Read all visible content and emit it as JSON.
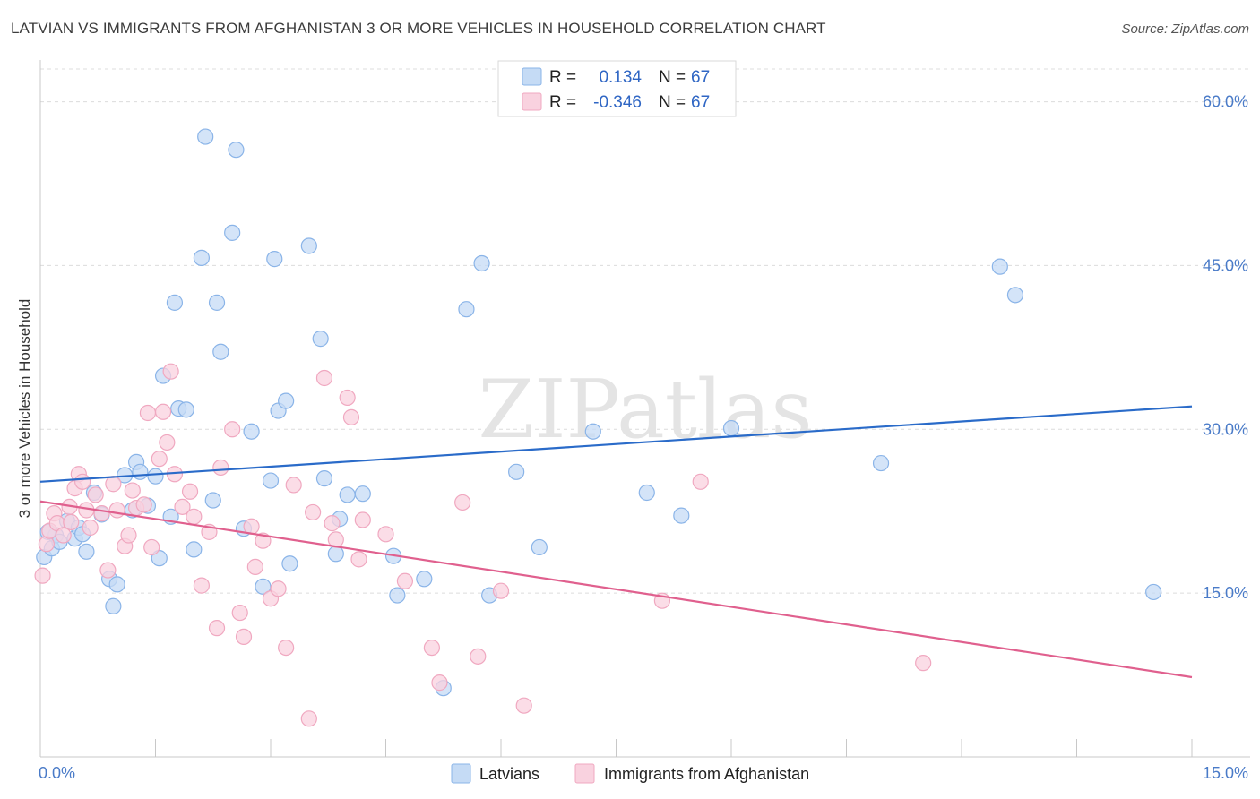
{
  "title": "LATVIAN VS IMMIGRANTS FROM AFGHANISTAN 3 OR MORE VEHICLES IN HOUSEHOLD CORRELATION CHART",
  "source": "Source: ZipAtlas.com",
  "watermark": "ZIPatlas",
  "chart_data": {
    "type": "scatter",
    "ylabel": "3 or more Vehicles in Household",
    "xlim": [
      0,
      15
    ],
    "ylim": [
      0,
      63
    ],
    "x_tick_labels": [
      "0.0%",
      "15.0%"
    ],
    "y_ticks": [
      15,
      30,
      45,
      60
    ],
    "y_tick_labels": [
      "15.0%",
      "30.0%",
      "45.0%",
      "60.0%"
    ],
    "grid": true,
    "legend_position": "top-center",
    "stats": [
      {
        "series": "Latvians",
        "r_label": "R =",
        "r_value": "0.134",
        "n_label": "N =",
        "n_value": "67"
      },
      {
        "series": "Immigrants from Afghanistan",
        "r_label": "R =",
        "r_value": "-0.346",
        "n_label": "N =",
        "n_value": "67"
      }
    ],
    "series": [
      {
        "name": "Latvians",
        "color": "#8ab4e8",
        "fill": "#c5dbf5",
        "line_color": "#2a6bc9",
        "trend": {
          "x": [
            0,
            15
          ],
          "y": [
            25.2,
            32.1
          ]
        },
        "points": [
          [
            0.05,
            18.3
          ],
          [
            0.15,
            19.1
          ],
          [
            0.2,
            20.3
          ],
          [
            0.25,
            19.7
          ],
          [
            0.35,
            21.6
          ],
          [
            0.45,
            20.0
          ],
          [
            0.5,
            21.0
          ],
          [
            0.55,
            20.4
          ],
          [
            0.6,
            18.8
          ],
          [
            0.7,
            24.2
          ],
          [
            0.8,
            22.2
          ],
          [
            0.9,
            16.3
          ],
          [
            0.95,
            13.8
          ],
          [
            1.0,
            15.8
          ],
          [
            1.1,
            25.8
          ],
          [
            1.2,
            22.6
          ],
          [
            1.25,
            27.0
          ],
          [
            1.3,
            26.1
          ],
          [
            1.4,
            23.0
          ],
          [
            1.5,
            25.7
          ],
          [
            1.55,
            18.2
          ],
          [
            1.6,
            34.9
          ],
          [
            1.7,
            22.0
          ],
          [
            1.75,
            41.6
          ],
          [
            1.8,
            31.9
          ],
          [
            1.9,
            31.8
          ],
          [
            2.0,
            19.0
          ],
          [
            2.1,
            45.7
          ],
          [
            2.15,
            56.8
          ],
          [
            2.25,
            23.5
          ],
          [
            2.3,
            41.6
          ],
          [
            2.35,
            37.1
          ],
          [
            2.5,
            48.0
          ],
          [
            2.55,
            55.6
          ],
          [
            2.65,
            20.9
          ],
          [
            2.75,
            29.8
          ],
          [
            2.9,
            15.6
          ],
          [
            3.0,
            25.3
          ],
          [
            3.05,
            45.6
          ],
          [
            3.1,
            31.7
          ],
          [
            3.2,
            32.6
          ],
          [
            3.25,
            17.7
          ],
          [
            3.5,
            46.8
          ],
          [
            3.65,
            38.3
          ],
          [
            3.7,
            25.5
          ],
          [
            3.85,
            18.6
          ],
          [
            3.9,
            21.8
          ],
          [
            4.0,
            24.0
          ],
          [
            4.2,
            24.1
          ],
          [
            4.6,
            18.4
          ],
          [
            4.65,
            14.8
          ],
          [
            5.0,
            16.3
          ],
          [
            5.25,
            6.3
          ],
          [
            5.55,
            41.0
          ],
          [
            5.75,
            45.2
          ],
          [
            5.85,
            14.8
          ],
          [
            6.2,
            26.1
          ],
          [
            6.5,
            19.2
          ],
          [
            7.2,
            29.8
          ],
          [
            7.9,
            24.2
          ],
          [
            8.35,
            22.1
          ],
          [
            9.0,
            30.1
          ],
          [
            10.95,
            26.9
          ],
          [
            12.5,
            44.9
          ],
          [
            12.7,
            42.3
          ],
          [
            14.5,
            15.1
          ],
          [
            0.1,
            20.6
          ]
        ]
      },
      {
        "name": "Immigrants from Afghanistan",
        "color": "#f0a8c0",
        "fill": "#f9d2df",
        "line_color": "#e0608e",
        "trend": {
          "x": [
            0,
            15
          ],
          "y": [
            23.4,
            7.3
          ]
        },
        "points": [
          [
            0.03,
            16.6
          ],
          [
            0.08,
            19.5
          ],
          [
            0.12,
            20.7
          ],
          [
            0.18,
            22.3
          ],
          [
            0.22,
            21.4
          ],
          [
            0.3,
            20.3
          ],
          [
            0.38,
            22.9
          ],
          [
            0.45,
            24.6
          ],
          [
            0.5,
            25.9
          ],
          [
            0.55,
            25.2
          ],
          [
            0.6,
            22.6
          ],
          [
            0.65,
            21.0
          ],
          [
            0.72,
            24.0
          ],
          [
            0.8,
            22.3
          ],
          [
            0.88,
            17.1
          ],
          [
            0.95,
            25.0
          ],
          [
            1.0,
            22.6
          ],
          [
            1.1,
            19.3
          ],
          [
            1.15,
            20.3
          ],
          [
            1.2,
            24.4
          ],
          [
            1.25,
            22.8
          ],
          [
            1.35,
            23.1
          ],
          [
            1.4,
            31.5
          ],
          [
            1.45,
            19.2
          ],
          [
            1.55,
            27.3
          ],
          [
            1.6,
            31.6
          ],
          [
            1.65,
            28.8
          ],
          [
            1.7,
            35.3
          ],
          [
            1.75,
            25.9
          ],
          [
            1.85,
            22.9
          ],
          [
            1.95,
            24.3
          ],
          [
            2.1,
            15.7
          ],
          [
            2.2,
            20.6
          ],
          [
            2.3,
            11.8
          ],
          [
            2.35,
            26.5
          ],
          [
            2.5,
            30.0
          ],
          [
            2.6,
            13.2
          ],
          [
            2.65,
            11.0
          ],
          [
            2.75,
            21.1
          ],
          [
            2.8,
            17.4
          ],
          [
            2.9,
            19.8
          ],
          [
            3.0,
            14.5
          ],
          [
            3.1,
            15.4
          ],
          [
            3.2,
            10.0
          ],
          [
            3.3,
            24.9
          ],
          [
            3.5,
            3.5
          ],
          [
            3.55,
            22.4
          ],
          [
            3.7,
            34.7
          ],
          [
            3.8,
            21.4
          ],
          [
            3.85,
            19.9
          ],
          [
            4.0,
            32.9
          ],
          [
            4.05,
            31.1
          ],
          [
            4.15,
            18.1
          ],
          [
            4.2,
            21.7
          ],
          [
            4.5,
            20.4
          ],
          [
            4.75,
            16.1
          ],
          [
            5.1,
            10.0
          ],
          [
            5.2,
            6.8
          ],
          [
            5.5,
            23.3
          ],
          [
            5.7,
            9.2
          ],
          [
            6.0,
            15.2
          ],
          [
            6.3,
            4.7
          ],
          [
            8.1,
            14.3
          ],
          [
            8.6,
            25.2
          ],
          [
            11.5,
            8.6
          ],
          [
            2.0,
            22.0
          ],
          [
            0.4,
            21.5
          ]
        ]
      }
    ]
  }
}
